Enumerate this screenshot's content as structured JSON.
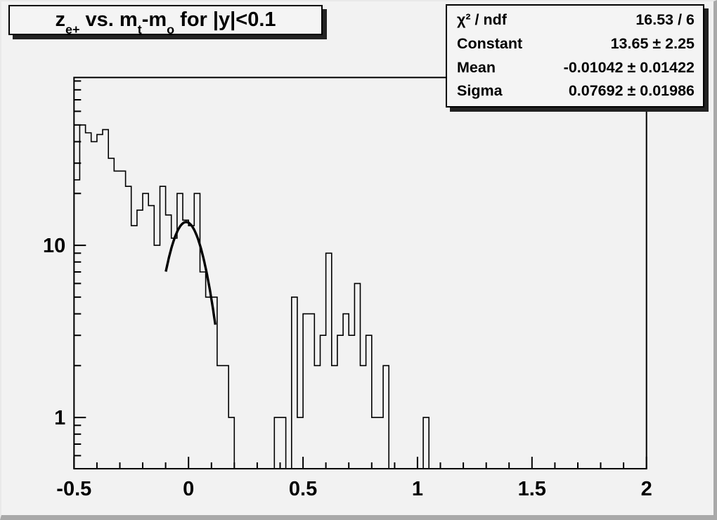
{
  "canvas": {
    "background": "#f2f2f2",
    "line_color": "#000000",
    "box_background": "#f4f4f4"
  },
  "title_box": {
    "parts": [
      {
        "text": "z",
        "sub": "e+"
      },
      {
        "text": " vs. m",
        "sub": "t"
      },
      {
        "text": "-m",
        "sub": "o"
      },
      {
        "text": " for |y|<0.1",
        "sub": ""
      }
    ],
    "plain": "z_e+ vs. m_t-m_o for |y|<0.1"
  },
  "stats_box": {
    "rows": [
      {
        "label": "χ² / ndf",
        "value": "16.53 / 6"
      },
      {
        "label": "Constant",
        "value": "13.65 ± 2.25"
      },
      {
        "label": "Mean",
        "value": "-0.01042 ± 0.01422"
      },
      {
        "label": "Sigma",
        "value": "0.07692 ± 0.01986"
      }
    ]
  },
  "chart_data": {
    "type": "histogram",
    "title": "z_e+ vs. m_t-m_o for |y|<0.1",
    "xlabel": "",
    "ylabel": "",
    "x_min": -0.5,
    "x_max": 2.0,
    "bin_width": 0.025,
    "n_bins": 100,
    "y_scale": "log",
    "ylim": [
      0.504,
      94.3
    ],
    "grid": false,
    "legend": false,
    "x_major_ticks": [
      {
        "v": -0.5,
        "label": "-0.5"
      },
      {
        "v": 0,
        "label": "0"
      },
      {
        "v": 0.5,
        "label": "0.5"
      },
      {
        "v": 1,
        "label": "1"
      },
      {
        "v": 1.5,
        "label": "1.5"
      },
      {
        "v": 2,
        "label": "2"
      }
    ],
    "x_minor_step": 0.1,
    "y_labeled_ticks": [
      1,
      10
    ],
    "values": [
      24,
      50,
      45,
      40,
      44,
      47,
      32,
      27,
      27,
      22,
      13,
      16,
      20,
      17,
      10,
      22,
      15,
      11,
      20,
      14,
      13,
      20,
      7,
      5,
      5,
      2,
      2,
      1,
      0,
      0,
      0,
      0,
      0,
      0,
      0,
      1,
      1,
      0,
      5,
      1,
      4,
      4,
      2,
      3,
      9,
      2,
      3,
      4,
      3,
      6,
      2,
      3,
      1,
      1,
      2,
      0,
      0,
      0,
      0,
      0,
      0,
      1,
      0,
      0,
      0,
      0,
      0,
      0,
      0,
      0,
      0,
      0,
      0,
      0,
      0,
      0,
      0,
      0,
      0,
      0,
      0,
      0,
      0,
      0,
      0,
      0,
      0,
      0,
      0,
      0,
      0,
      0,
      0,
      0,
      0,
      0,
      0,
      0,
      0,
      0
    ],
    "fit": {
      "type": "gaussian",
      "constant": 13.65,
      "mean": -0.01042,
      "sigma": 0.07692,
      "chi2": 16.53,
      "ndf": 6,
      "draw_range": [
        -0.099,
        0.117
      ]
    }
  }
}
